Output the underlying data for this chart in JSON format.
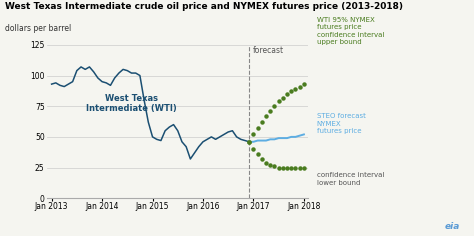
{
  "title": "West Texas Intermediate crude oil price and NYMEX futures price (2013-2018)",
  "ylabel": "dollars per barrel",
  "ylim": [
    0,
    125
  ],
  "yticks": [
    0,
    25,
    50,
    75,
    100,
    125
  ],
  "background_color": "#f5f5f0",
  "wti_color": "#1b4f72",
  "steo_color": "#5dade2",
  "ci_color": "#4a7c1f",
  "forecast_line_color": "#888888",
  "wti_label": "West Texas\nIntermediate (WTI)",
  "steo_label": "STEO forecast\nNYMEX\nfutures price",
  "upper_label": "WTI 95% NYMEX\nfutures price\nconfidence interval\nupper bound",
  "lower_label": "confidence interval\nlower bound",
  "forecast_label": "forecast",
  "wti_data": {
    "months": [
      0,
      1,
      2,
      3,
      4,
      5,
      6,
      7,
      8,
      9,
      10,
      11,
      12,
      13,
      14,
      15,
      16,
      17,
      18,
      19,
      20,
      21,
      22,
      23,
      24,
      25,
      26,
      27,
      28,
      29,
      30,
      31,
      32,
      33,
      34,
      35,
      36,
      37,
      38,
      39,
      40,
      41,
      42,
      43,
      44,
      45,
      46,
      47
    ],
    "prices": [
      93,
      94,
      92,
      91,
      93,
      95,
      104,
      107,
      105,
      107,
      103,
      98,
      95,
      94,
      92,
      98,
      102,
      105,
      104,
      102,
      102,
      100,
      80,
      62,
      50,
      48,
      47,
      55,
      58,
      60,
      55,
      46,
      42,
      32,
      37,
      42,
      46,
      48,
      50,
      48,
      50,
      52,
      54,
      55,
      50,
      48,
      47,
      46
    ]
  },
  "steo_data": {
    "months": [
      47,
      48,
      49,
      50,
      51,
      52,
      53,
      54,
      55,
      56,
      57,
      58,
      59,
      60
    ],
    "prices": [
      46,
      46,
      47,
      47,
      47,
      48,
      48,
      49,
      49,
      49,
      50,
      50,
      51,
      52
    ]
  },
  "upper_ci": {
    "months": [
      47,
      48,
      49,
      50,
      51,
      52,
      53,
      54,
      55,
      56,
      57,
      58,
      59,
      60
    ],
    "prices": [
      46,
      52,
      57,
      62,
      67,
      71,
      75,
      79,
      82,
      85,
      87,
      89,
      91,
      93
    ]
  },
  "lower_ci": {
    "months": [
      47,
      48,
      49,
      50,
      51,
      52,
      53,
      54,
      55,
      56,
      57,
      58,
      59,
      60
    ],
    "prices": [
      46,
      40,
      36,
      32,
      29,
      27,
      26,
      25,
      25,
      25,
      25,
      25,
      25,
      25
    ]
  },
  "forecast_x_month": 47,
  "xtick_months": [
    0,
    12,
    24,
    36,
    48,
    60
  ],
  "xtick_labels": [
    "Jan 2013",
    "Jan 2014",
    "Jan 2015",
    "Jan 2016",
    "Jan 2017",
    "Jan 2018"
  ]
}
